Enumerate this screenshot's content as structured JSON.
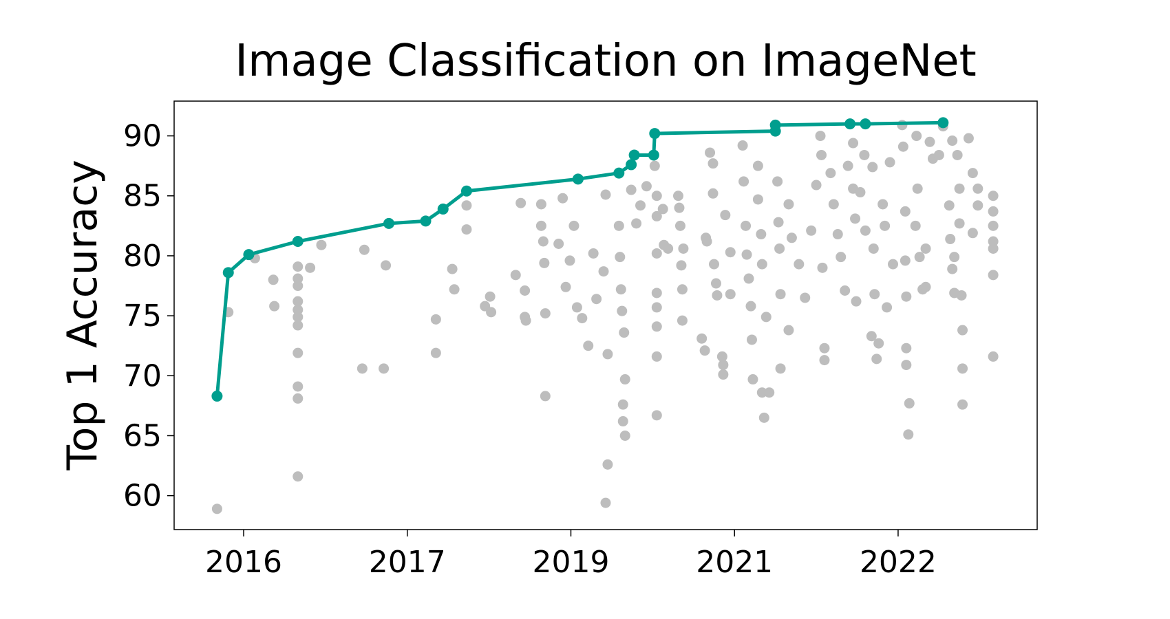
{
  "chart_data": {
    "type": "scatter",
    "title": "Image Classification on ImageNet",
    "y_label": "Top 1 Accuracy",
    "xlim": [
      2015.52,
      2023.96
    ],
    "ylim": [
      57.17,
      92.9
    ],
    "xticks": [
      {
        "value": 2016.2,
        "label": "2016"
      },
      {
        "value": 2017.8,
        "label": "2017"
      },
      {
        "value": 2019.4,
        "label": "2019"
      },
      {
        "value": 2021.0,
        "label": "2021"
      },
      {
        "value": 2022.6,
        "label": "2022"
      }
    ],
    "yticks": [
      60,
      65,
      70,
      75,
      80,
      85,
      90
    ],
    "series": [
      {
        "color": "#bdbdbd",
        "line": false,
        "x": [
          2015.94,
          2016.05,
          2016.31,
          2016.49,
          2016.5,
          2016.73,
          2016.73,
          2016.73,
          2016.73,
          2016.73,
          2016.73,
          2016.73,
          2016.73,
          2016.73,
          2016.73,
          2016.73,
          2016.85,
          2016.96,
          2017.38,
          2017.36,
          2017.57,
          2017.59,
          2018.08,
          2018.08,
          2018.24,
          2018.26,
          2018.38,
          2018.38,
          2018.56,
          2018.61,
          2018.62,
          2018.86,
          2018.91,
          2018.95,
          2018.95,
          2018.96,
          2019.11,
          2019.11,
          2019.13,
          2019.14,
          2019.15,
          2019.15,
          2019.28,
          2019.32,
          2019.35,
          2019.39,
          2019.43,
          2019.46,
          2019.51,
          2019.57,
          2019.62,
          2019.65,
          2019.72,
          2019.74,
          2019.76,
          2019.74,
          2019.76,
          2019.87,
          2019.88,
          2019.89,
          2019.9,
          2019.92,
          2019.93,
          2019.91,
          2019.91,
          2019.93,
          2019.99,
          2020.04,
          2020.08,
          2020.14,
          2020.22,
          2020.24,
          2020.24,
          2020.24,
          2020.24,
          2020.24,
          2020.24,
          2020.24,
          2020.24,
          2020.3,
          2020.31,
          2020.35,
          2020.45,
          2020.46,
          2020.47,
          2020.5,
          2020.48,
          2020.49,
          2020.49,
          2020.68,
          2020.72,
          2020.73,
          2020.71,
          2020.76,
          2020.79,
          2020.79,
          2020.8,
          2020.82,
          2020.83,
          2020.88,
          2020.89,
          2020.89,
          2020.91,
          2020.96,
          2020.96,
          2021.08,
          2021.09,
          2021.11,
          2021.12,
          2021.14,
          2021.16,
          2021.17,
          2021.18,
          2021.23,
          2021.23,
          2021.26,
          2021.27,
          2021.27,
          2021.29,
          2021.34,
          2021.31,
          2021.42,
          2021.43,
          2021.44,
          2021.45,
          2021.45,
          2021.53,
          2021.53,
          2021.56,
          2021.63,
          2021.69,
          2021.75,
          2021.8,
          2021.84,
          2021.85,
          2021.86,
          2021.88,
          2021.88,
          2021.94,
          2021.97,
          2022.01,
          2022.04,
          2022.08,
          2022.11,
          2022.16,
          2022.16,
          2022.18,
          2022.19,
          2022.23,
          2022.27,
          2022.28,
          2022.34,
          2022.35,
          2022.36,
          2022.37,
          2022.39,
          2022.41,
          2022.45,
          2022.47,
          2022.49,
          2022.52,
          2022.55,
          2022.64,
          2022.65,
          2022.67,
          2022.67,
          2022.68,
          2022.68,
          2022.68,
          2022.71,
          2022.7,
          2022.77,
          2022.78,
          2022.79,
          2022.81,
          2022.84,
          2022.87,
          2022.87,
          2022.91,
          2022.94,
          2023.0,
          2023.04,
          2023.1,
          2023.13,
          2023.11,
          2023.15,
          2023.13,
          2023.15,
          2023.18,
          2023.2,
          2023.2,
          2023.22,
          2023.23,
          2023.23,
          2023.23,
          2023.29,
          2023.33,
          2023.33,
          2023.38,
          2023.38,
          2023.53,
          2023.53,
          2023.53,
          2023.53,
          2023.53,
          2023.53,
          2023.53
        ],
        "values": [
          58.9,
          75.3,
          79.8,
          78.0,
          75.8,
          79.1,
          78.1,
          77.5,
          76.2,
          75.5,
          74.9,
          74.2,
          71.9,
          69.1,
          68.1,
          61.6,
          79.0,
          80.9,
          80.5,
          70.6,
          70.6,
          79.2,
          74.7,
          71.9,
          78.9,
          77.2,
          84.2,
          82.2,
          75.8,
          76.6,
          75.3,
          78.4,
          84.4,
          77.1,
          74.9,
          74.6,
          84.3,
          82.5,
          81.2,
          79.4,
          75.2,
          68.3,
          81.0,
          84.8,
          77.4,
          79.6,
          82.5,
          75.7,
          74.8,
          72.5,
          80.2,
          76.4,
          78.7,
          85.1,
          62.6,
          59.4,
          71.8,
          82.5,
          79.9,
          77.2,
          75.4,
          73.6,
          69.7,
          67.6,
          66.2,
          65.0,
          85.5,
          82.7,
          84.2,
          85.8,
          87.5,
          85.0,
          83.3,
          80.2,
          76.9,
          75.7,
          74.1,
          71.6,
          66.7,
          83.9,
          80.9,
          80.6,
          85.0,
          84.0,
          82.5,
          80.6,
          79.2,
          77.2,
          74.6,
          73.1,
          81.5,
          81.2,
          72.1,
          88.6,
          87.7,
          85.2,
          79.3,
          77.7,
          76.7,
          71.6,
          70.9,
          70.1,
          83.4,
          80.3,
          76.8,
          89.2,
          86.2,
          82.5,
          80.1,
          78.1,
          75.8,
          73.0,
          69.7,
          87.5,
          84.7,
          81.8,
          79.3,
          68.6,
          66.5,
          68.6,
          74.9,
          86.2,
          82.8,
          80.6,
          70.6,
          76.8,
          84.3,
          73.8,
          81.5,
          79.3,
          76.5,
          82.1,
          85.9,
          90.0,
          88.4,
          79.0,
          72.3,
          71.3,
          86.9,
          84.3,
          81.8,
          79.9,
          77.1,
          87.5,
          89.4,
          85.6,
          83.1,
          76.2,
          85.3,
          88.4,
          82.1,
          73.3,
          87.4,
          80.6,
          76.8,
          71.4,
          72.7,
          84.3,
          82.5,
          75.7,
          87.8,
          79.3,
          90.9,
          89.1,
          83.7,
          79.6,
          76.6,
          72.3,
          70.9,
          67.7,
          65.1,
          82.5,
          90.0,
          85.6,
          79.9,
          77.2,
          77.4,
          80.6,
          89.5,
          88.1,
          88.4,
          90.8,
          84.2,
          89.6,
          81.4,
          79.9,
          78.9,
          76.9,
          88.4,
          85.6,
          82.7,
          76.7,
          73.8,
          70.6,
          67.6,
          89.8,
          86.9,
          81.9,
          84.2,
          85.6,
          85.0,
          83.7,
          82.5,
          81.2,
          80.6,
          78.4,
          71.6
        ]
      },
      {
        "color": "#009e8e",
        "line": true,
        "x": [
          2015.94,
          2016.05,
          2016.25,
          2016.73,
          2017.62,
          2017.98,
          2018.15,
          2018.38,
          2019.47,
          2019.87,
          2019.99,
          2020.02,
          2020.21,
          2020.22,
          2021.4,
          2021.4,
          2022.13,
          2022.28,
          2023.04
        ],
        "values": [
          68.3,
          78.6,
          80.1,
          81.2,
          82.7,
          82.9,
          83.9,
          85.4,
          86.4,
          86.9,
          87.6,
          88.4,
          88.4,
          90.2,
          90.4,
          90.9,
          91.0,
          91.0,
          91.1
        ]
      }
    ]
  }
}
